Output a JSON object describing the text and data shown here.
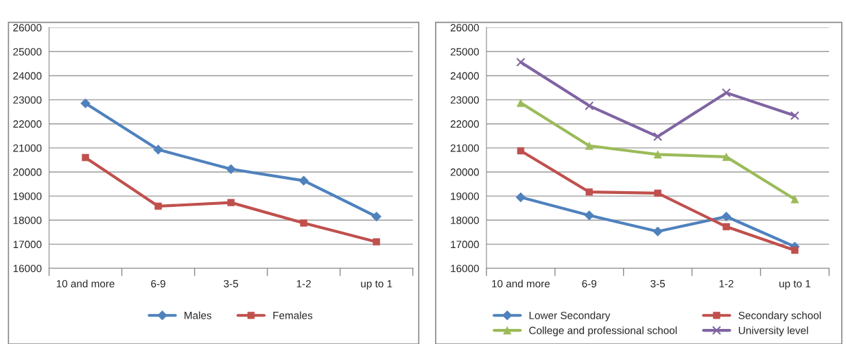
{
  "chart_data": [
    {
      "type": "line",
      "categories": [
        "10 and more",
        "6-9",
        "3-5",
        "1-2",
        "up to 1"
      ],
      "ylim": [
        16000,
        26000
      ],
      "yticks": [
        16000,
        17000,
        18000,
        19000,
        20000,
        21000,
        22000,
        23000,
        24000,
        25000,
        26000
      ],
      "grid": "y",
      "legend": "bottom",
      "series": [
        {
          "name": "Males",
          "color": "#4f81bd",
          "marker": "diamond",
          "values": [
            22850,
            20930,
            20120,
            19640,
            18150
          ]
        },
        {
          "name": "Females",
          "color": "#c0504d",
          "marker": "square",
          "values": [
            20600,
            18580,
            18730,
            17880,
            17100
          ]
        }
      ]
    },
    {
      "type": "line",
      "categories": [
        "10 and more",
        "6-9",
        "3-5",
        "1-2",
        "up to 1"
      ],
      "ylim": [
        16000,
        26000
      ],
      "yticks": [
        16000,
        17000,
        18000,
        19000,
        20000,
        21000,
        22000,
        23000,
        24000,
        25000,
        26000
      ],
      "grid": "y",
      "legend": "bottom",
      "series": [
        {
          "name": "Lower Secondary",
          "color": "#4f81bd",
          "marker": "diamond",
          "values": [
            18950,
            18200,
            17530,
            18150,
            16900
          ]
        },
        {
          "name": "Secondary school",
          "color": "#c0504d",
          "marker": "square",
          "values": [
            20880,
            19170,
            19120,
            17730,
            16750
          ]
        },
        {
          "name": "College and professional school",
          "color": "#9bbb59",
          "marker": "triangle",
          "values": [
            22870,
            21090,
            20730,
            20630,
            18870
          ]
        },
        {
          "name": "University level",
          "color": "#8064a2",
          "marker": "cross",
          "values": [
            24560,
            22750,
            21470,
            23290,
            22340
          ]
        }
      ]
    }
  ]
}
